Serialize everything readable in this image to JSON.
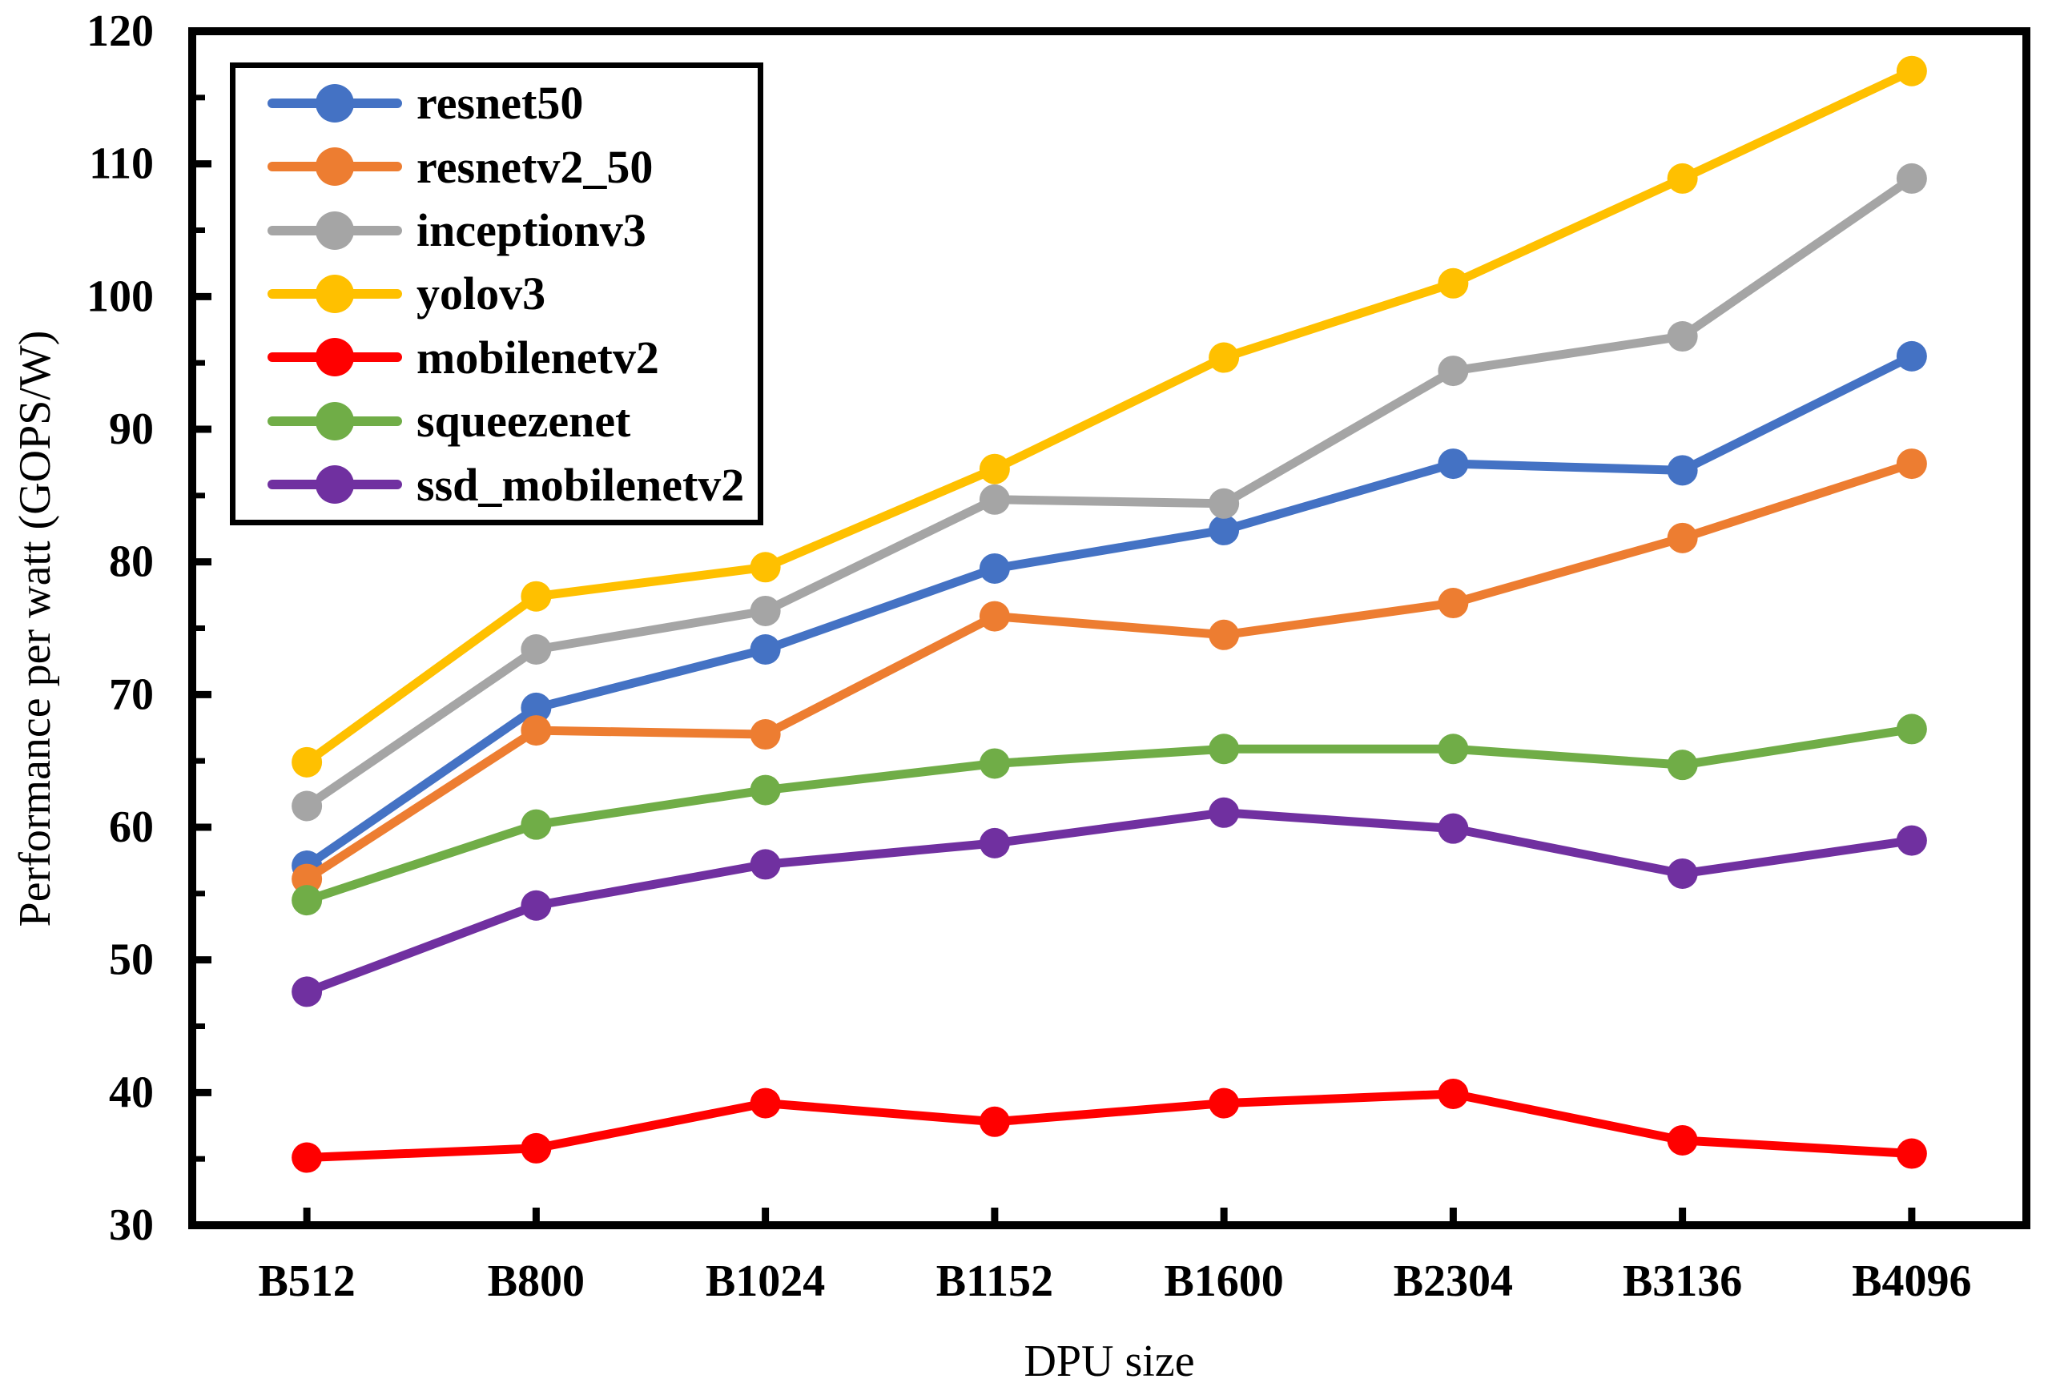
{
  "chart_data": {
    "type": "line",
    "title": "",
    "xlabel": "DPU size",
    "ylabel": "Performance per watt (GOPS/W)",
    "categories": [
      "B512",
      "B800",
      "B1024",
      "B1152",
      "B1600",
      "B2304",
      "B3136",
      "B4096"
    ],
    "ylim": [
      30,
      120
    ],
    "yticks": [
      30,
      40,
      50,
      60,
      70,
      80,
      90,
      100,
      110,
      120
    ],
    "yminorticks": [
      35,
      45,
      55,
      65,
      75,
      85,
      95,
      105,
      115
    ],
    "grid": false,
    "legend_position": "upper-left-inside",
    "axis_color": "#000000",
    "background_color": "#ffffff",
    "series": [
      {
        "name": "resnet50",
        "color": "#4472C4",
        "values": [
          57.1,
          69.0,
          73.4,
          79.5,
          82.4,
          87.4,
          86.9,
          95.5
        ]
      },
      {
        "name": "resnetv2_50",
        "color": "#ED7D31",
        "values": [
          56.1,
          67.3,
          67.0,
          75.9,
          74.5,
          76.9,
          81.8,
          87.4
        ]
      },
      {
        "name": "inceptionv3",
        "color": "#A5A5A5",
        "values": [
          61.6,
          73.4,
          76.3,
          84.7,
          84.4,
          94.4,
          97.0,
          108.9
        ]
      },
      {
        "name": "yolov3",
        "color": "#FFC000",
        "values": [
          64.9,
          77.4,
          79.6,
          87.0,
          95.4,
          101.0,
          108.9,
          117.0
        ]
      },
      {
        "name": "mobilenetv2",
        "color": "#FF0000",
        "values": [
          35.1,
          35.8,
          39.2,
          37.8,
          39.2,
          39.9,
          36.4,
          35.4
        ]
      },
      {
        "name": "squeezenet",
        "color": "#70AD47",
        "values": [
          54.5,
          60.2,
          62.8,
          64.8,
          65.9,
          65.9,
          64.7,
          67.4
        ]
      },
      {
        "name": "ssd_mobilenetv2",
        "color": "#7030A0",
        "values": [
          47.6,
          54.1,
          57.2,
          58.8,
          61.1,
          59.9,
          56.5,
          59.0
        ]
      }
    ]
  }
}
